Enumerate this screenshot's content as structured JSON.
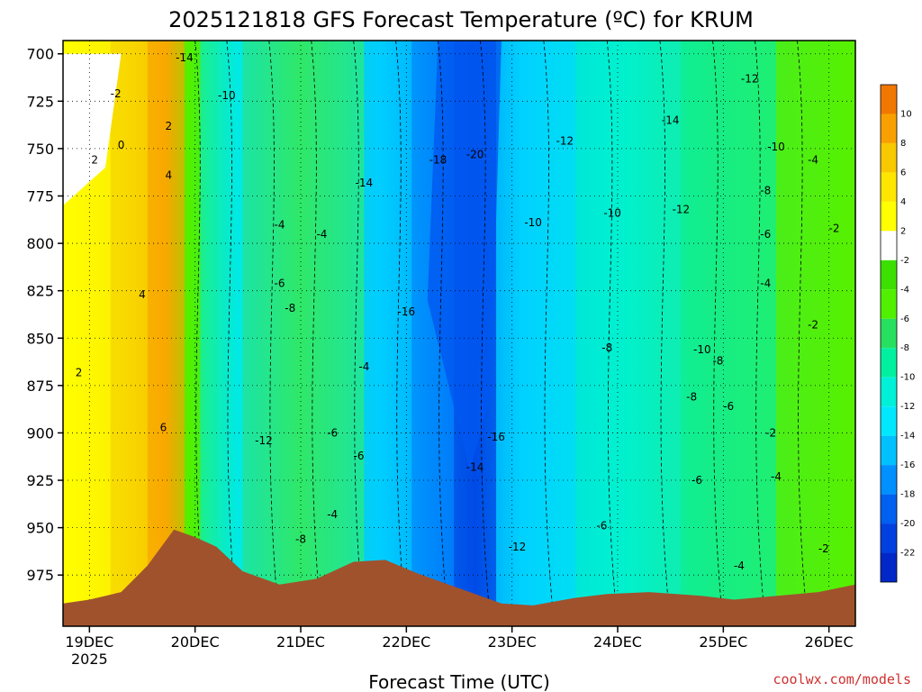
{
  "chart_data": {
    "type": "heatmap",
    "title": "2025121818 GFS Forecast Temperature (ºC) for KRUM",
    "xlabel": "Forecast Time (UTC)",
    "ylabel": "",
    "credit": "coolwx.com/models",
    "x_ticks": [
      {
        "label": "19DEC",
        "sub": "2025",
        "day": 0
      },
      {
        "label": "20DEC",
        "sub": "",
        "day": 1
      },
      {
        "label": "21DEC",
        "sub": "",
        "day": 2
      },
      {
        "label": "22DEC",
        "sub": "",
        "day": 3
      },
      {
        "label": "23DEC",
        "sub": "",
        "day": 4
      },
      {
        "label": "24DEC",
        "sub": "",
        "day": 5
      },
      {
        "label": "25DEC",
        "sub": "",
        "day": 6
      },
      {
        "label": "26DEC",
        "sub": "",
        "day": 7
      }
    ],
    "xlim_days": [
      -0.25,
      7.25
    ],
    "y_ticks": [
      "700",
      "725",
      "750",
      "775",
      "800",
      "825",
      "850",
      "875",
      "900",
      "925",
      "950",
      "975"
    ],
    "ylim_hPa": [
      693,
      1002
    ],
    "colorbar": {
      "levels": [
        10,
        8,
        6,
        4,
        2,
        -2,
        -4,
        -6,
        -8,
        -10,
        -12,
        -14,
        -16,
        -18,
        -20,
        -22
      ],
      "colors": [
        "#f07800",
        "#f8a000",
        "#f8c800",
        "#ffe600",
        "#ffff00",
        "#ffffff",
        "#3ce000",
        "#50f000",
        "#28e060",
        "#00f0a0",
        "#00f0d8",
        "#00e8ff",
        "#00c0ff",
        "#0090ff",
        "#0060f0",
        "#0040e0",
        "#0028c8"
      ]
    },
    "color_bins": [
      {
        "label": "<-20",
        "color": "#0030d8"
      },
      {
        "label": "-20..-18",
        "color": "#0058f0"
      },
      {
        "label": "-18..-16",
        "color": "#0080ff"
      },
      {
        "label": "-16..-14",
        "color": "#00b0ff"
      },
      {
        "label": "-14..-12",
        "color": "#00e0ff"
      },
      {
        "label": "-12..-10",
        "color": "#00f0d0"
      },
      {
        "label": "-10..-8",
        "color": "#00f0a0"
      },
      {
        "label": "-8..-6",
        "color": "#30e868"
      },
      {
        "label": "-6..-4",
        "color": "#50f000"
      },
      {
        "label": "-4..-2",
        "color": "#60f000"
      },
      {
        "label": "-2..2",
        "color": "#ffffff"
      },
      {
        "label": "2..4",
        "color": "#ffff00"
      },
      {
        "label": "4..6",
        "color": "#f8d800"
      },
      {
        "label": "6..8",
        "color": "#f8a800"
      },
      {
        "label": "8..10",
        "color": "#f07800"
      }
    ],
    "grid": true,
    "terrain_color": "#a0522d",
    "terrain_hPa": [
      {
        "day": -0.25,
        "p": 990
      },
      {
        "day": 0.0,
        "p": 988
      },
      {
        "day": 0.3,
        "p": 984
      },
      {
        "day": 0.55,
        "p": 970
      },
      {
        "day": 0.8,
        "p": 951
      },
      {
        "day": 1.0,
        "p": 955
      },
      {
        "day": 1.2,
        "p": 960
      },
      {
        "day": 1.45,
        "p": 973
      },
      {
        "day": 1.8,
        "p": 980
      },
      {
        "day": 2.15,
        "p": 977
      },
      {
        "day": 2.5,
        "p": 968
      },
      {
        "day": 2.8,
        "p": 967
      },
      {
        "day": 3.1,
        "p": 974
      },
      {
        "day": 3.5,
        "p": 982
      },
      {
        "day": 3.9,
        "p": 990
      },
      {
        "day": 4.2,
        "p": 991
      },
      {
        "day": 4.6,
        "p": 987
      },
      {
        "day": 4.9,
        "p": 985
      },
      {
        "day": 5.3,
        "p": 984
      },
      {
        "day": 5.8,
        "p": 986
      },
      {
        "day": 6.1,
        "p": 988
      },
      {
        "day": 6.5,
        "p": 986
      },
      {
        "day": 6.9,
        "p": 984
      },
      {
        "day": 7.25,
        "p": 980
      }
    ],
    "contour_labels": [
      {
        "text": "-14",
        "day": 0.9,
        "p": 704
      },
      {
        "text": "-2",
        "day": 0.25,
        "p": 723
      },
      {
        "text": "-10",
        "day": 1.3,
        "p": 724
      },
      {
        "text": "2",
        "day": 0.75,
        "p": 740
      },
      {
        "text": "0",
        "day": 0.3,
        "p": 750
      },
      {
        "text": "2",
        "day": 0.05,
        "p": 758
      },
      {
        "text": "4",
        "day": 0.75,
        "p": 766
      },
      {
        "text": "-14",
        "day": 2.6,
        "p": 770
      },
      {
        "text": "-18",
        "day": 3.3,
        "p": 758
      },
      {
        "text": "-20",
        "day": 3.65,
        "p": 755
      },
      {
        "text": "-12",
        "day": 4.5,
        "p": 748
      },
      {
        "text": "-14",
        "day": 5.5,
        "p": 737
      },
      {
        "text": "-12",
        "day": 6.25,
        "p": 715
      },
      {
        "text": "-10",
        "day": 6.5,
        "p": 751
      },
      {
        "text": "-4",
        "day": 6.85,
        "p": 758
      },
      {
        "text": "-8",
        "day": 6.4,
        "p": 774
      },
      {
        "text": "-12",
        "day": 5.6,
        "p": 784
      },
      {
        "text": "-10",
        "day": 4.2,
        "p": 791
      },
      {
        "text": "-10",
        "day": 4.95,
        "p": 786
      },
      {
        "text": "-2",
        "day": 7.05,
        "p": 794
      },
      {
        "text": "-6",
        "day": 6.4,
        "p": 797
      },
      {
        "text": "-4",
        "day": 1.8,
        "p": 792
      },
      {
        "text": "-4",
        "day": 2.2,
        "p": 797
      },
      {
        "text": "4",
        "day": 0.5,
        "p": 829
      },
      {
        "text": "-6",
        "day": 1.8,
        "p": 823
      },
      {
        "text": "-8",
        "day": 1.9,
        "p": 836
      },
      {
        "text": "-16",
        "day": 3.0,
        "p": 838
      },
      {
        "text": "-4",
        "day": 6.4,
        "p": 823
      },
      {
        "text": "-2",
        "day": 6.85,
        "p": 845
      },
      {
        "text": "-8",
        "day": 4.9,
        "p": 857
      },
      {
        "text": "-10",
        "day": 5.8,
        "p": 858
      },
      {
        "text": "-8",
        "day": 5.95,
        "p": 864
      },
      {
        "text": "2",
        "day": -0.1,
        "p": 870
      },
      {
        "text": "-4",
        "day": 2.6,
        "p": 867
      },
      {
        "text": "-8",
        "day": 5.7,
        "p": 883
      },
      {
        "text": "-6",
        "day": 6.05,
        "p": 888
      },
      {
        "text": "6",
        "day": 0.7,
        "p": 899
      },
      {
        "text": "-6",
        "day": 2.3,
        "p": 902
      },
      {
        "text": "-16",
        "day": 3.85,
        "p": 904
      },
      {
        "text": "-2",
        "day": 6.45,
        "p": 902
      },
      {
        "text": "-12",
        "day": 1.65,
        "p": 906
      },
      {
        "text": "-6",
        "day": 2.55,
        "p": 914
      },
      {
        "text": "-14",
        "day": 3.65,
        "p": 920
      },
      {
        "text": "-6",
        "day": 5.75,
        "p": 927
      },
      {
        "text": "-4",
        "day": 6.5,
        "p": 925
      },
      {
        "text": "-4",
        "day": 2.3,
        "p": 945
      },
      {
        "text": "-6",
        "day": 4.85,
        "p": 951
      },
      {
        "text": "-8",
        "day": 2.0,
        "p": 958
      },
      {
        "text": "-12",
        "day": 4.05,
        "p": 962
      },
      {
        "text": "-2",
        "day": 6.95,
        "p": 963
      },
      {
        "text": "-4",
        "day": 6.15,
        "p": 972
      }
    ]
  }
}
